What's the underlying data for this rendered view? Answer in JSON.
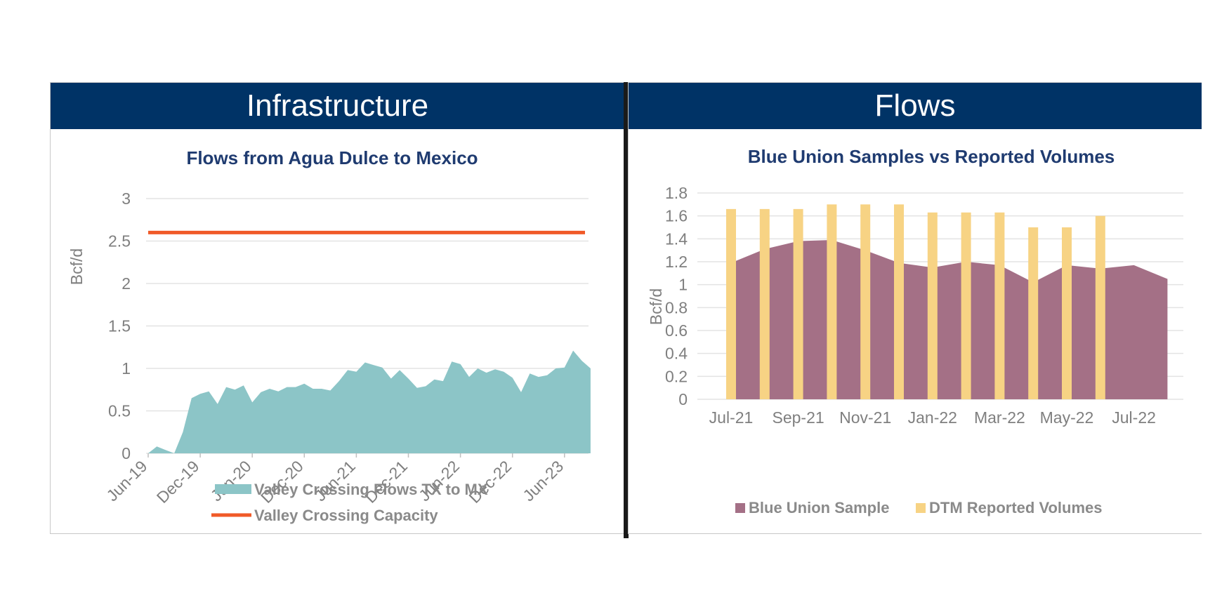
{
  "panels": {
    "left_header": "Infrastructure",
    "right_header": "Flows"
  },
  "colors": {
    "header_bg": "#003366",
    "teal": "#8cc5c7",
    "orange": "#f05a28",
    "mauve": "#a47086",
    "yellow": "#f7d384",
    "title": "#1f3b70"
  },
  "chart_data": [
    {
      "type": "area",
      "title": "Flows from Agua Dulce to Mexico",
      "ylabel": "Bcf/d",
      "xlabel": "",
      "ylim": [
        0,
        3
      ],
      "yticks": [
        0,
        0.5,
        1,
        1.5,
        2,
        2.5,
        3
      ],
      "xticks": [
        "Jun-19",
        "Dec-19",
        "Jun-20",
        "Dec-20",
        "Jun-21",
        "Dec-21",
        "Jun-22",
        "Dec-22",
        "Jun-23"
      ],
      "x_start": "Jun-19",
      "legend_position": "bottom",
      "grid": true,
      "series": [
        {
          "name": "Valley Crossing Flows TX to MX",
          "kind": "area",
          "values": [
            0.0,
            0.08,
            0.04,
            0.0,
            0.25,
            0.65,
            0.7,
            0.73,
            0.58,
            0.78,
            0.75,
            0.8,
            0.6,
            0.72,
            0.76,
            0.73,
            0.78,
            0.78,
            0.82,
            0.76,
            0.76,
            0.74,
            0.85,
            0.98,
            0.96,
            1.07,
            1.04,
            1.01,
            0.88,
            0.98,
            0.88,
            0.77,
            0.79,
            0.87,
            0.85,
            1.08,
            1.05,
            0.9,
            1.0,
            0.95,
            0.99,
            0.96,
            0.89,
            0.72,
            0.94,
            0.9,
            0.92,
            1.0,
            1.01,
            1.21,
            1.09,
            1.0
          ]
        },
        {
          "name": "Valley Crossing Capacity",
          "kind": "line",
          "values": [
            2.6,
            2.6
          ]
        }
      ]
    },
    {
      "type": "bar",
      "title": "Blue Union Samples vs Reported Volumes",
      "ylabel": "Bcf/d",
      "xlabel": "",
      "ylim": [
        0,
        1.8
      ],
      "yticks": [
        0,
        0.2,
        0.4,
        0.6,
        0.8,
        1,
        1.2,
        1.4,
        1.6,
        1.8
      ],
      "categories": [
        "Jul-21",
        "Aug-21",
        "Sep-21",
        "Oct-21",
        "Nov-21",
        "Dec-21",
        "Jan-22",
        "Feb-22",
        "Mar-22",
        "Apr-22",
        "May-22",
        "Jun-22",
        "Jul-22",
        "Aug-22"
      ],
      "xtick_labels": [
        "Jul-21",
        "",
        "Sep-21",
        "",
        "Nov-21",
        "",
        "Jan-22",
        "",
        "Mar-22",
        "",
        "May-22",
        "",
        "Jul-22",
        ""
      ],
      "legend_position": "bottom",
      "grid": true,
      "series": [
        {
          "name": "Blue Union Sample",
          "kind": "area",
          "values": [
            1.19,
            1.31,
            1.38,
            1.39,
            1.3,
            1.19,
            1.15,
            1.2,
            1.17,
            1.02,
            1.17,
            1.14,
            1.17,
            1.05
          ]
        },
        {
          "name": "DTM Reported Volumes",
          "kind": "bar",
          "values": [
            1.66,
            1.66,
            1.66,
            1.7,
            1.7,
            1.7,
            1.63,
            1.63,
            1.63,
            1.5,
            1.5,
            1.6,
            null,
            null
          ]
        }
      ]
    }
  ]
}
